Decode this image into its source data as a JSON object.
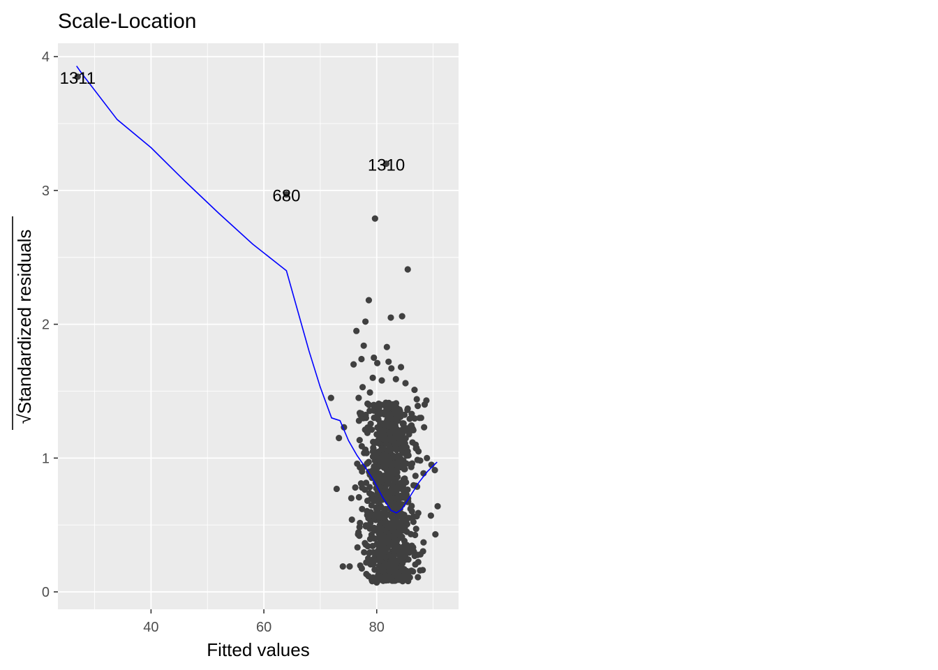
{
  "chart_data": {
    "type": "scatter",
    "title": "Scale-Location",
    "xlabel": "Fitted values",
    "ylabel_radical": "√",
    "ylabel": "Standardized residuals",
    "xlim": [
      23.5,
      94.5
    ],
    "ylim": [
      -0.13,
      4.1
    ],
    "x_ticks": [
      40,
      60,
      80
    ],
    "x_minor_ticks": [
      30,
      50,
      70,
      90
    ],
    "y_ticks": [
      0,
      1,
      2,
      3,
      4
    ],
    "y_minor_ticks": [
      0.5,
      1.5,
      2.5,
      3.5
    ],
    "grid": true,
    "panel_background": "#ebebeb",
    "point_color": "#404040",
    "line_color": "#0000ff",
    "labeled_points": [
      {
        "label": "1311",
        "x": 27,
        "y": 3.85
      },
      {
        "label": "680",
        "x": 64,
        "y": 2.97
      },
      {
        "label": "1310",
        "x": 81.7,
        "y": 3.2
      }
    ],
    "points": [
      [
        79.7,
        2.79
      ],
      [
        85.5,
        2.41
      ],
      [
        78.6,
        2.18
      ],
      [
        82.5,
        2.05
      ],
      [
        84.5,
        2.06
      ],
      [
        78.0,
        2.02
      ],
      [
        76.4,
        1.95
      ],
      [
        77.7,
        1.84
      ],
      [
        81.8,
        1.83
      ],
      [
        75.9,
        1.7
      ],
      [
        80.1,
        1.71
      ],
      [
        82.6,
        1.67
      ],
      [
        84.3,
        1.68
      ],
      [
        77.3,
        1.74
      ],
      [
        79.3,
        1.6
      ],
      [
        80.9,
        1.58
      ],
      [
        83.4,
        1.59
      ],
      [
        85.1,
        1.56
      ],
      [
        71.9,
        1.45
      ],
      [
        74.2,
        1.23
      ],
      [
        73.3,
        1.15
      ],
      [
        72.9,
        0.77
      ],
      [
        76.8,
        1.45
      ],
      [
        77.5,
        1.53
      ],
      [
        78.8,
        1.49
      ],
      [
        86.7,
        1.51
      ],
      [
        87.1,
        1.44
      ],
      [
        88.5,
        1.4
      ],
      [
        88.8,
        1.43
      ],
      [
        86.2,
        1.33
      ],
      [
        87.6,
        1.3
      ],
      [
        88.4,
        1.23
      ],
      [
        85.7,
        1.2
      ],
      [
        86.9,
        1.1
      ],
      [
        87.4,
        1.05
      ],
      [
        88.9,
        1.0
      ],
      [
        89.7,
        0.95
      ],
      [
        90.3,
        0.91
      ],
      [
        90.8,
        0.64
      ],
      [
        89.6,
        0.57
      ],
      [
        90.4,
        0.43
      ],
      [
        88.3,
        0.37
      ],
      [
        86.6,
        0.3
      ],
      [
        87.3,
        0.11
      ],
      [
        75.2,
        0.19
      ],
      [
        74.0,
        0.19
      ],
      [
        75.5,
        0.7
      ],
      [
        76.2,
        0.78
      ],
      [
        75.6,
        0.54
      ],
      [
        76.7,
        0.43
      ],
      [
        77.4,
        0.9
      ],
      [
        78.1,
        1.3
      ],
      [
        79.2,
        0.08
      ],
      [
        80.0,
        0.07
      ],
      [
        81.4,
        0.1
      ],
      [
        82.7,
        0.09
      ],
      [
        84.1,
        0.09
      ],
      [
        83.6,
        0.12
      ],
      [
        79.5,
        1.75
      ],
      [
        82.1,
        1.72
      ]
    ],
    "cluster": {
      "x_center": 82.3,
      "x_sd": 2.2,
      "y_min": 0.08,
      "y_max": 1.42,
      "count": 900
    },
    "smooth_line": [
      [
        26.8,
        3.93
      ],
      [
        27.8,
        3.87
      ],
      [
        34,
        3.53
      ],
      [
        40,
        3.32
      ],
      [
        46,
        3.07
      ],
      [
        52,
        2.83
      ],
      [
        58,
        2.6
      ],
      [
        64,
        2.4
      ],
      [
        66,
        2.1
      ],
      [
        68,
        1.8
      ],
      [
        70,
        1.53
      ],
      [
        72,
        1.3
      ],
      [
        73.5,
        1.28
      ],
      [
        75,
        1.13
      ],
      [
        76.5,
        1.02
      ],
      [
        78,
        0.93
      ],
      [
        79.5,
        0.83
      ],
      [
        81,
        0.71
      ],
      [
        82.5,
        0.61
      ],
      [
        83.5,
        0.59
      ],
      [
        84.5,
        0.62
      ],
      [
        86,
        0.72
      ],
      [
        87.5,
        0.82
      ],
      [
        89,
        0.9
      ],
      [
        90.7,
        0.97
      ]
    ]
  }
}
